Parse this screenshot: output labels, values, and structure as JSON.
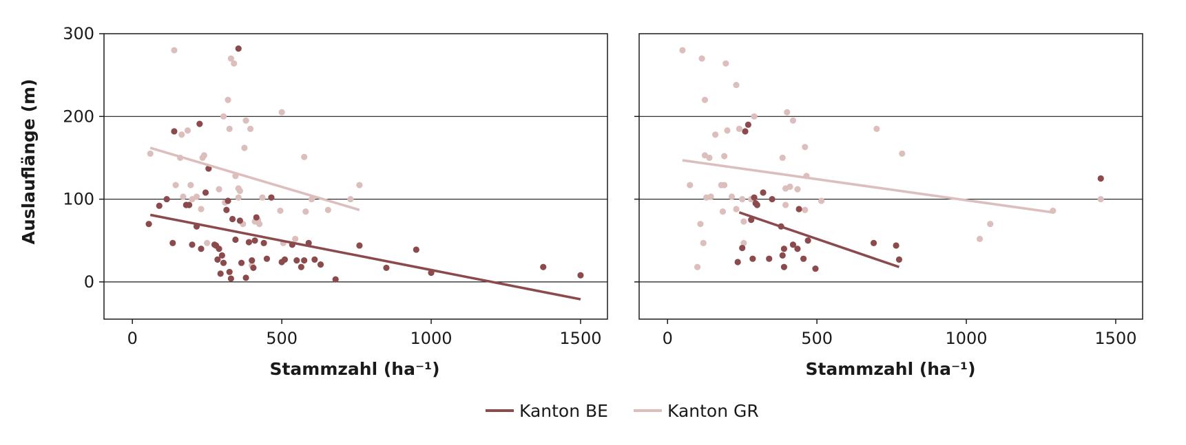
{
  "colors": {
    "be": "#8b4a4c",
    "gr": "#dcbfbd",
    "frame": "#1a1a1a"
  },
  "legend": [
    {
      "key": "be",
      "label": "Kanton BE"
    },
    {
      "key": "gr",
      "label": "Kanton GR"
    }
  ],
  "chart_data": [
    {
      "type": "scatter",
      "xlabel": "Stammzahl (ha⁻¹)",
      "ylabel": "Auslauflänge (m)",
      "xlim": [
        -95,
        1590
      ],
      "ylim": [
        -45,
        300
      ],
      "xticks": [
        0,
        500,
        1000,
        1500
      ],
      "yticks": [
        0,
        100,
        200,
        300
      ],
      "yticklabels": [
        "0",
        "100",
        "200",
        "300"
      ],
      "grid_y": [
        0,
        100,
        200
      ],
      "series": [
        {
          "key": "be",
          "name": "Kanton BE",
          "points": [
            [
              55,
              70
            ],
            [
              90,
              92
            ],
            [
              115,
              100
            ],
            [
              135,
              47
            ],
            [
              140,
              182
            ],
            [
              180,
              93
            ],
            [
              190,
              93
            ],
            [
              200,
              45
            ],
            [
              215,
              67
            ],
            [
              225,
              191
            ],
            [
              230,
              40
            ],
            [
              245,
              108
            ],
            [
              255,
              137
            ],
            [
              275,
              45
            ],
            [
              280,
              44
            ],
            [
              285,
              27
            ],
            [
              290,
              40
            ],
            [
              295,
              10
            ],
            [
              300,
              32
            ],
            [
              305,
              23
            ],
            [
              315,
              87
            ],
            [
              320,
              98
            ],
            [
              325,
              12
            ],
            [
              330,
              4
            ],
            [
              335,
              76
            ],
            [
              345,
              51
            ],
            [
              360,
              74
            ],
            [
              365,
              23
            ],
            [
              380,
              5
            ],
            [
              390,
              48
            ],
            [
              400,
              26
            ],
            [
              405,
              17
            ],
            [
              410,
              50
            ],
            [
              415,
              78
            ],
            [
              440,
              47
            ],
            [
              450,
              28
            ],
            [
              465,
              102
            ],
            [
              500,
              24
            ],
            [
              510,
              27
            ],
            [
              535,
              45
            ],
            [
              550,
              26
            ],
            [
              565,
              18
            ],
            [
              575,
              26
            ],
            [
              590,
              47
            ],
            [
              610,
              27
            ],
            [
              630,
              21
            ],
            [
              680,
              3
            ],
            [
              760,
              44
            ],
            [
              850,
              17
            ],
            [
              950,
              39
            ],
            [
              1000,
              11
            ],
            [
              1375,
              18
            ],
            [
              1500,
              8
            ],
            [
              355,
              282
            ]
          ],
          "trend": [
            [
              60,
              81
            ],
            [
              1500,
              -21
            ]
          ]
        },
        {
          "key": "gr",
          "name": "Kanton GR",
          "points": [
            [
              60,
              155
            ],
            [
              140,
              280
            ],
            [
              145,
              117
            ],
            [
              160,
              150
            ],
            [
              165,
              178
            ],
            [
              170,
              103
            ],
            [
              185,
              183
            ],
            [
              195,
              117
            ],
            [
              200,
              100
            ],
            [
              215,
              103
            ],
            [
              230,
              88
            ],
            [
              235,
              150
            ],
            [
              240,
              153
            ],
            [
              250,
              47
            ],
            [
              290,
              112
            ],
            [
              305,
              200
            ],
            [
              310,
              96
            ],
            [
              320,
              220
            ],
            [
              325,
              185
            ],
            [
              330,
              270
            ],
            [
              340,
              264
            ],
            [
              345,
              128
            ],
            [
              355,
              113
            ],
            [
              360,
              110
            ],
            [
              355,
              102
            ],
            [
              370,
              70
            ],
            [
              375,
              162
            ],
            [
              380,
              195
            ],
            [
              395,
              185
            ],
            [
              400,
              20
            ],
            [
              410,
              73
            ],
            [
              420,
              75
            ],
            [
              425,
              70
            ],
            [
              435,
              102
            ],
            [
              495,
              86
            ],
            [
              500,
              205
            ],
            [
              505,
              47
            ],
            [
              545,
              52
            ],
            [
              575,
              151
            ],
            [
              580,
              85
            ],
            [
              600,
              100
            ],
            [
              655,
              87
            ],
            [
              730,
              100
            ],
            [
              760,
              117
            ]
          ],
          "trend": [
            [
              60,
              162
            ],
            [
              760,
              87
            ]
          ]
        }
      ]
    },
    {
      "type": "scatter",
      "xlabel": "Stammzahl (ha⁻¹)",
      "xlim": [
        -95,
        1590
      ],
      "ylim": [
        -45,
        300
      ],
      "xticks": [
        0,
        500,
        1000,
        1500
      ],
      "grid_y": [
        0,
        100,
        200
      ],
      "series": [
        {
          "key": "be",
          "name": "Kanton BE",
          "points": [
            [
              235,
              24
            ],
            [
              250,
              41
            ],
            [
              260,
              182
            ],
            [
              270,
              190
            ],
            [
              280,
              75
            ],
            [
              285,
              28
            ],
            [
              290,
              102
            ],
            [
              295,
              95
            ],
            [
              300,
              93
            ],
            [
              320,
              108
            ],
            [
              340,
              28
            ],
            [
              350,
              100
            ],
            [
              380,
              67
            ],
            [
              385,
              32
            ],
            [
              390,
              40
            ],
            [
              390,
              18
            ],
            [
              420,
              45
            ],
            [
              435,
              40
            ],
            [
              440,
              88
            ],
            [
              455,
              28
            ],
            [
              470,
              50
            ],
            [
              495,
              16
            ],
            [
              690,
              47
            ],
            [
              765,
              44
            ],
            [
              775,
              27
            ],
            [
              1450,
              125
            ]
          ],
          "trend": [
            [
              240,
              84
            ],
            [
              775,
              18
            ]
          ]
        },
        {
          "key": "gr",
          "name": "Kanton GR",
          "points": [
            [
              50,
              280
            ],
            [
              75,
              117
            ],
            [
              100,
              18
            ],
            [
              110,
              70
            ],
            [
              115,
              270
            ],
            [
              120,
              47
            ],
            [
              125,
              220
            ],
            [
              125,
              153
            ],
            [
              130,
              102
            ],
            [
              140,
              150
            ],
            [
              145,
              103
            ],
            [
              160,
              178
            ],
            [
              180,
              117
            ],
            [
              185,
              85
            ],
            [
              190,
              117
            ],
            [
              190,
              152
            ],
            [
              195,
              264
            ],
            [
              200,
              183
            ],
            [
              215,
              103
            ],
            [
              230,
              88
            ],
            [
              230,
              238
            ],
            [
              240,
              185
            ],
            [
              250,
              100
            ],
            [
              255,
              47
            ],
            [
              255,
              73
            ],
            [
              280,
              100
            ],
            [
              290,
              200
            ],
            [
              385,
              150
            ],
            [
              395,
              93
            ],
            [
              395,
              113
            ],
            [
              400,
              205
            ],
            [
              410,
              115
            ],
            [
              420,
              195
            ],
            [
              435,
              112
            ],
            [
              460,
              87
            ],
            [
              460,
              163
            ],
            [
              465,
              128
            ],
            [
              515,
              98
            ],
            [
              700,
              185
            ],
            [
              785,
              155
            ],
            [
              1045,
              52
            ],
            [
              1080,
              70
            ],
            [
              1290,
              86
            ],
            [
              1450,
              100
            ]
          ],
          "trend": [
            [
              50,
              147
            ],
            [
              1290,
              84
            ]
          ]
        }
      ]
    }
  ]
}
